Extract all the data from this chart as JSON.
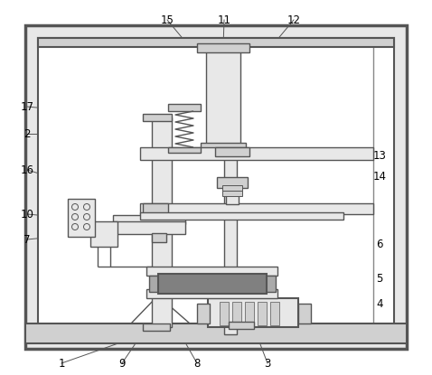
{
  "bg_color": "#ffffff",
  "lc": "#888888",
  "lc_dark": "#555555",
  "lc_mid": "#999999",
  "fc_light": "#e8e8e8",
  "fc_mid": "#d0d0d0",
  "fc_dark": "#aaaaaa",
  "fc_vdark": "#808080"
}
